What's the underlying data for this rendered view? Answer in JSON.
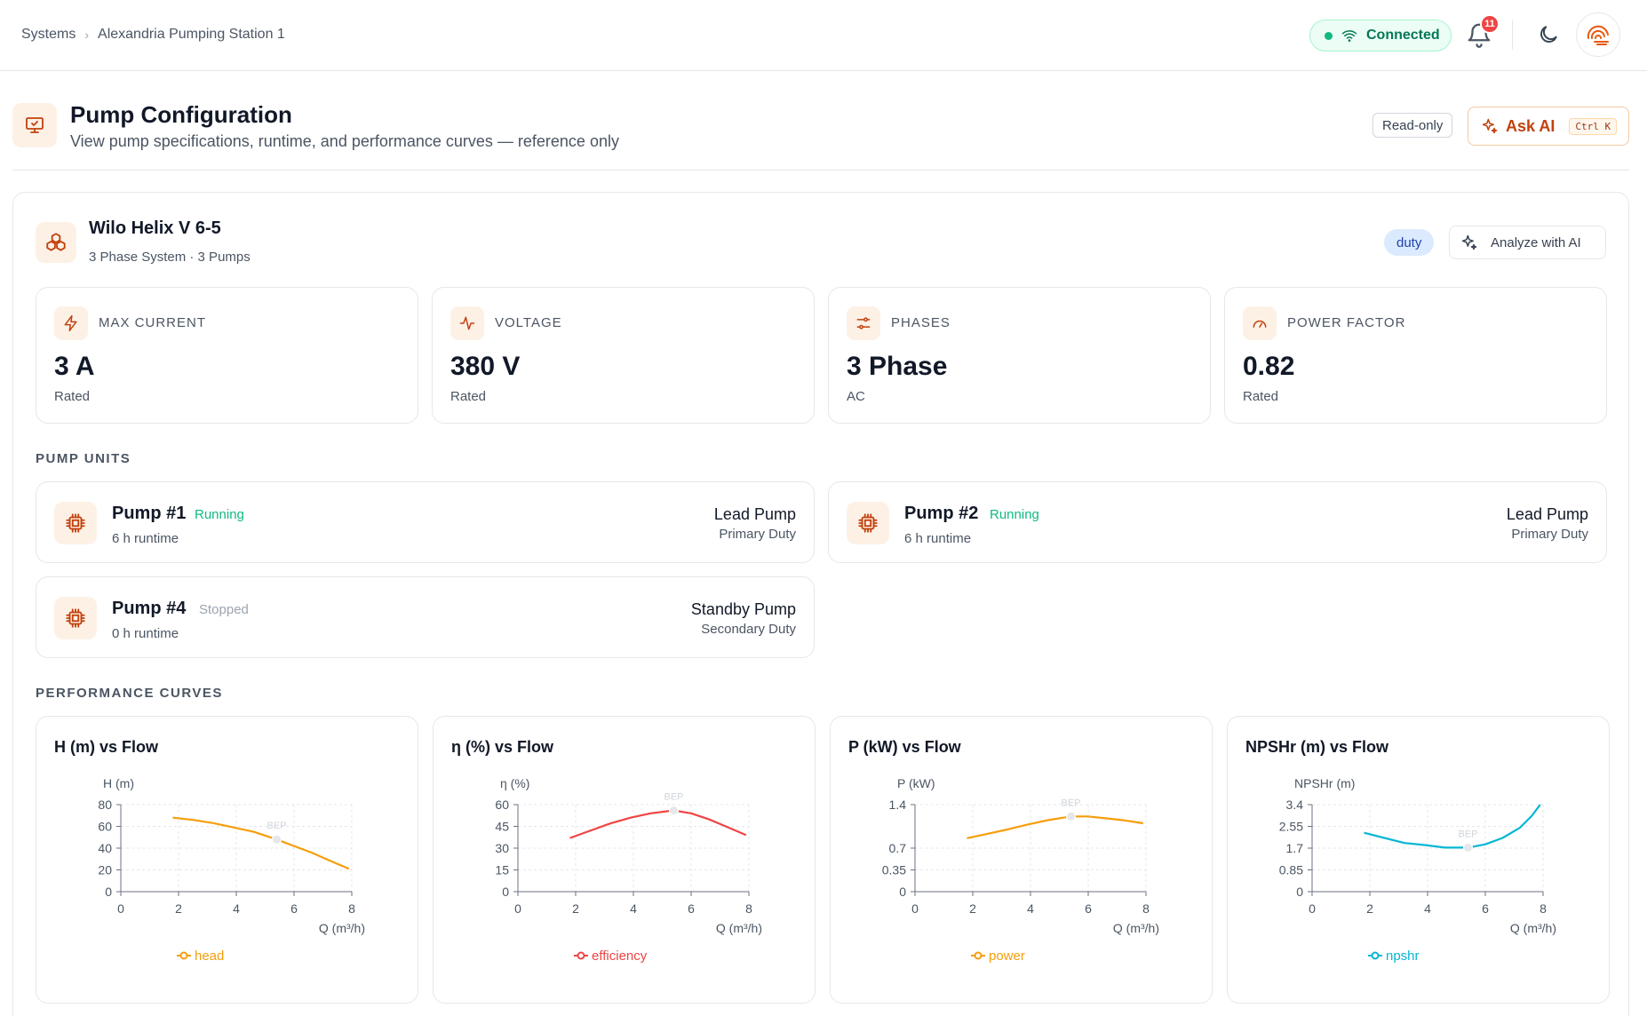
{
  "breadcrumb": [
    "Systems",
    "Alexandria Pumping Station 1"
  ],
  "status": {
    "connection": "Connected",
    "notifications": "11"
  },
  "header": {
    "title": "Pump Configuration",
    "subtitle": "View pump specifications, runtime, and performance curves — reference only",
    "readonly": "Read-only",
    "ask_ai": "Ask AI",
    "shortcut": "Ctrl K"
  },
  "system": {
    "name": "Wilo Helix V 6-5",
    "subtitle": "3 Phase System · 3 Pumps",
    "badge": "duty",
    "analyze": "Analyze with AI"
  },
  "metrics": [
    {
      "label": "MAX CURRENT",
      "value": "3 A",
      "sub": "Rated",
      "icon": "lightning-icon"
    },
    {
      "label": "VOLTAGE",
      "value": "380 V",
      "sub": "Rated",
      "icon": "pulse-icon"
    },
    {
      "label": "PHASES",
      "value": "3 Phase",
      "sub": "AC",
      "icon": "sliders-icon"
    },
    {
      "label": "POWER FACTOR",
      "value": "0.82",
      "sub": "Rated",
      "icon": "gauge-icon"
    }
  ],
  "sections": {
    "pump_units": "PUMP UNITS",
    "performance": "PERFORMANCE CURVES"
  },
  "pumps": [
    {
      "name": "Pump #1",
      "state": "Running",
      "runtime": "6 h runtime",
      "role": "Lead Pump",
      "duty": "Primary Duty"
    },
    {
      "name": "Pump #2",
      "state": "Running",
      "runtime": "6 h runtime",
      "role": "Lead Pump",
      "duty": "Primary Duty"
    },
    {
      "name": "Pump #4",
      "state": "Stopped",
      "runtime": "0 h runtime",
      "role": "Standby Pump",
      "duty": "Secondary Duty"
    }
  ],
  "colors": {
    "accent": "#ea580c",
    "running": "#10b981",
    "stopped": "#9ca3af",
    "head": "#f59e0b",
    "efficiency": "#ef4444",
    "power": "#f59e0b",
    "npshr": "#06b6d4"
  },
  "chart_data": [
    {
      "type": "line",
      "title": "H (m) vs Flow",
      "ylabel": "H (m)",
      "xlabel": "Q (m³/h)",
      "series_name": "head",
      "color": "#f59e0b",
      "xlim": [
        0,
        8
      ],
      "ylim": [
        0,
        80
      ],
      "xticks": [
        "0",
        "2",
        "4",
        "6",
        "8"
      ],
      "yticks": [
        "0",
        "20",
        "40",
        "60",
        "80"
      ],
      "ytick_values": [
        0,
        20,
        40,
        60,
        80
      ],
      "x": [
        1.8,
        2.5,
        3.2,
        3.9,
        4.6,
        5.4,
        6.0,
        6.6,
        7.2,
        7.9
      ],
      "y": [
        68,
        66,
        63,
        59,
        55,
        48,
        42,
        36,
        29,
        21
      ],
      "bep": {
        "label": "BEP",
        "x": 5.4,
        "y": 48
      }
    },
    {
      "type": "line",
      "title": "η (%) vs Flow",
      "ylabel": "η (%)",
      "xlabel": "Q (m³/h)",
      "series_name": "efficiency",
      "color": "#ef4444",
      "xlim": [
        0,
        8
      ],
      "ylim": [
        0,
        60
      ],
      "xticks": [
        "0",
        "2",
        "4",
        "6",
        "8"
      ],
      "yticks": [
        "0",
        "15",
        "30",
        "45",
        "60"
      ],
      "ytick_values": [
        0,
        15,
        30,
        45,
        60
      ],
      "x": [
        1.8,
        2.5,
        3.2,
        3.9,
        4.6,
        5.4,
        6.0,
        6.6,
        7.2,
        7.9
      ],
      "y": [
        37,
        42,
        47,
        51,
        54,
        56,
        54,
        50,
        45,
        39
      ],
      "bep": {
        "label": "BEP",
        "x": 5.4,
        "y": 56
      }
    },
    {
      "type": "line",
      "title": "P (kW) vs Flow",
      "ylabel": "P (kW)",
      "xlabel": "Q (m³/h)",
      "series_name": "power",
      "color": "#f59e0b",
      "xlim": [
        0,
        8
      ],
      "ylim": [
        0,
        1.4
      ],
      "xticks": [
        "0",
        "2",
        "4",
        "6",
        "8"
      ],
      "yticks": [
        "0",
        "0.35",
        "0.7",
        "1.4"
      ],
      "ytick_values": [
        0,
        0.35,
        0.7,
        1.4
      ],
      "x": [
        1.8,
        2.5,
        3.2,
        3.9,
        4.6,
        5.4,
        6.0,
        6.6,
        7.2,
        7.9
      ],
      "y": [
        0.86,
        0.93,
        1.0,
        1.08,
        1.15,
        1.21,
        1.21,
        1.18,
        1.15,
        1.1
      ],
      "bep": {
        "label": "BEP",
        "x": 5.4,
        "y": 1.21
      }
    },
    {
      "type": "line",
      "title": "NPSHr (m) vs Flow",
      "ylabel": "NPSHr (m)",
      "xlabel": "Q (m³/h)",
      "series_name": "npshr",
      "color": "#06b6d4",
      "xlim": [
        0,
        8
      ],
      "ylim": [
        0,
        3.4
      ],
      "xticks": [
        "0",
        "2",
        "4",
        "6",
        "8"
      ],
      "yticks": [
        "0",
        "0.85",
        "1.7",
        "2.55",
        "3.4"
      ],
      "ytick_values": [
        0,
        0.85,
        1.7,
        2.55,
        3.4
      ],
      "x": [
        1.8,
        2.5,
        3.2,
        3.9,
        4.6,
        5.4,
        6.0,
        6.6,
        7.2,
        7.6,
        7.9
      ],
      "y": [
        2.3,
        2.1,
        1.9,
        1.82,
        1.72,
        1.72,
        1.85,
        2.1,
        2.5,
        2.95,
        3.4
      ],
      "bep": {
        "label": "BEP",
        "x": 5.4,
        "y": 1.72
      }
    }
  ]
}
